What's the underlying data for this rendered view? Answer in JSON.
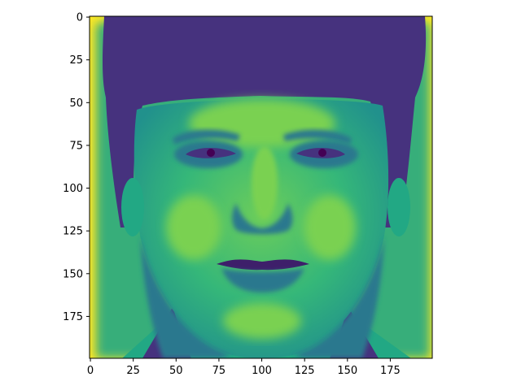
{
  "chart_data": {
    "type": "heatmap",
    "title": "",
    "xlabel": "",
    "ylabel": "",
    "x_range": [
      -0.5,
      199.5
    ],
    "y_range": [
      199.5,
      -0.5
    ],
    "x_ticks": [
      0,
      25,
      50,
      75,
      100,
      125,
      150,
      175
    ],
    "y_ticks": [
      0,
      25,
      50,
      75,
      100,
      125,
      150,
      175
    ],
    "x_tick_labels": [
      "0",
      "25",
      "50",
      "75",
      "100",
      "125",
      "150",
      "175"
    ],
    "y_tick_labels": [
      "0",
      "25",
      "50",
      "75",
      "100",
      "125",
      "150",
      "175"
    ],
    "y_inverted": true,
    "grid": false,
    "legend": "none",
    "colormap": "viridis",
    "image_size": [
      200,
      200
    ],
    "image_content": "grayscale face portrait rendered with viridis colormap",
    "colors": {
      "background": "#fde725",
      "skin_light": "#7ad151",
      "skin_mid": "#22a884",
      "skin_shadow": "#2a788e",
      "hair": "#46327e",
      "hair_dark": "#3e1f6a",
      "eyes": "#440154",
      "axis": "#000000"
    }
  }
}
